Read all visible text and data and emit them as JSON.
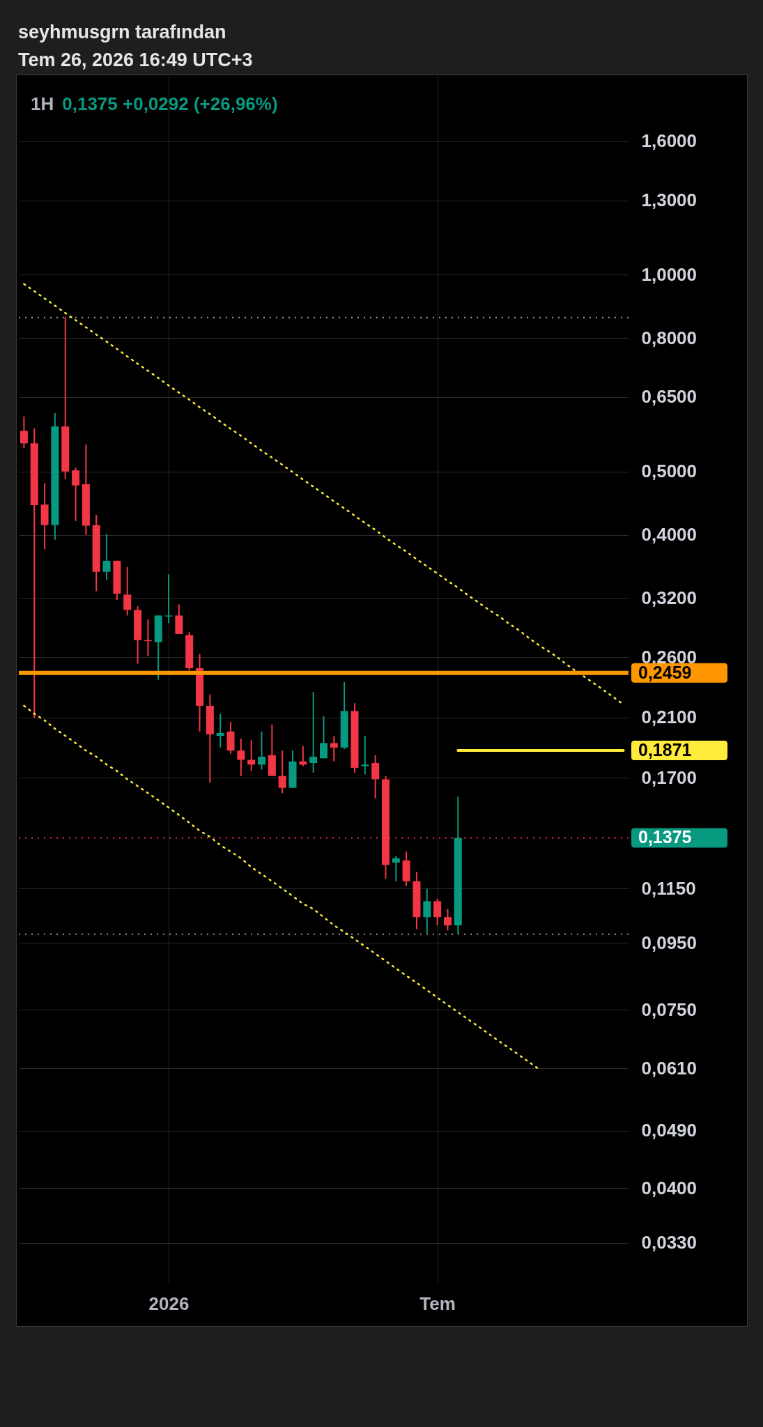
{
  "chart_data": {
    "type": "candlestick",
    "title": "1H",
    "subtitle": "0,1375  +0,0292 (+26,96%)",
    "annotations": [
      "seyhmusgrn tarafından",
      "Tem 26, 2026 16:49 UTC+3"
    ],
    "categories": [
      null,
      null,
      null,
      null,
      null,
      null,
      null,
      null,
      null,
      null,
      null,
      null,
      null,
      null,
      "2026",
      null,
      null,
      null,
      null,
      null,
      null,
      null,
      null,
      null,
      null,
      null,
      null,
      null,
      null,
      null,
      null,
      null,
      null,
      null,
      null,
      null,
      null,
      null,
      null,
      null,
      "Tem",
      null,
      null,
      null,
      null,
      null,
      null,
      null,
      null,
      null,
      null,
      null,
      null,
      null,
      null,
      null,
      null,
      null,
      null
    ],
    "ohlc": [
      [
        0.577,
        0.607,
        0.543,
        0.552
      ],
      [
        0.552,
        0.582,
        0.21,
        0.444
      ],
      [
        0.445,
        0.48,
        0.38,
        0.414
      ],
      [
        0.414,
        0.614,
        0.393,
        0.586
      ],
      [
        0.586,
        0.862,
        0.487,
        0.5
      ],
      [
        0.502,
        0.507,
        0.42,
        0.476
      ],
      [
        0.478,
        0.55,
        0.4,
        0.413
      ],
      [
        0.414,
        0.429,
        0.328,
        0.351
      ],
      [
        0.351,
        0.401,
        0.341,
        0.365
      ],
      [
        0.365,
        0.365,
        0.318,
        0.325
      ],
      [
        0.324,
        0.357,
        0.301,
        0.307
      ],
      [
        0.307,
        0.311,
        0.254,
        0.276
      ],
      [
        0.276,
        0.297,
        0.261,
        0.275
      ],
      [
        0.274,
        0.301,
        0.24,
        0.301
      ],
      [
        0.3,
        0.348,
        0.293,
        0.301
      ],
      [
        0.301,
        0.313,
        0.282,
        0.282
      ],
      [
        0.281,
        0.284,
        0.248,
        0.25
      ],
      [
        0.25,
        0.263,
        0.2,
        0.219
      ],
      [
        0.219,
        0.228,
        0.167,
        0.198
      ],
      [
        0.197,
        0.213,
        0.189,
        0.199
      ],
      [
        0.2,
        0.207,
        0.185,
        0.187
      ],
      [
        0.187,
        0.195,
        0.171,
        0.181
      ],
      [
        0.181,
        0.194,
        0.174,
        0.178
      ],
      [
        0.178,
        0.2,
        0.175,
        0.183
      ],
      [
        0.184,
        0.205,
        0.171,
        0.171
      ],
      [
        0.171,
        0.187,
        0.161,
        0.164
      ],
      [
        0.164,
        0.187,
        0.164,
        0.18
      ],
      [
        0.18,
        0.19,
        0.177,
        0.178
      ],
      [
        0.179,
        0.23,
        0.173,
        0.183
      ],
      [
        0.182,
        0.211,
        0.182,
        0.192
      ],
      [
        0.192,
        0.197,
        0.18,
        0.189
      ],
      [
        0.189,
        0.238,
        0.188,
        0.215
      ],
      [
        0.215,
        0.221,
        0.173,
        0.176
      ],
      [
        0.177,
        0.197,
        0.172,
        0.178
      ],
      [
        0.179,
        0.184,
        0.158,
        0.169
      ],
      [
        0.169,
        0.171,
        0.119,
        0.125
      ],
      [
        0.126,
        0.129,
        0.118,
        0.128
      ],
      [
        0.127,
        0.131,
        0.116,
        0.118
      ],
      [
        0.118,
        0.122,
        0.0996,
        0.104
      ],
      [
        0.104,
        0.115,
        0.0983,
        0.11
      ],
      [
        0.11,
        0.111,
        0.101,
        0.104
      ],
      [
        0.104,
        0.107,
        0.0992,
        0.101
      ],
      [
        0.101,
        0.159,
        0.0981,
        0.1375
      ],
      null,
      null,
      null,
      null,
      null,
      null,
      null,
      null,
      null,
      null,
      null,
      null,
      null,
      null,
      null,
      null
    ],
    "colors": [
      "#f23645",
      "#f23645",
      "#f23645",
      "#089981",
      "#f23645",
      "#f23645",
      "#f23645",
      "#f23645",
      "#089981",
      "#f23645",
      "#f23645",
      "#f23645",
      "#f23645",
      "#089981",
      "#089981",
      "#f23645",
      "#f23645",
      "#f23645",
      "#f23645",
      "#089981",
      "#f23645",
      "#f23645",
      "#f23645",
      "#089981",
      "#f23645",
      "#f23645",
      "#089981",
      "#f23645",
      "#089981",
      "#089981",
      "#f23645",
      "#089981",
      "#f23645",
      "#089981",
      "#f23645",
      "#f23645",
      "#089981",
      "#f23645",
      "#f23645",
      "#089981",
      "#f23645",
      "#f23645",
      "#089981",
      null,
      null,
      null,
      null,
      null,
      null,
      null,
      null,
      null,
      null,
      null,
      null,
      null,
      null,
      null,
      null
    ],
    "series": [
      {
        "type": "line",
        "color": "#ffeb3b",
        "line_style": "dotted",
        "values": [
          0.968,
          0.944,
          0.92,
          0.897,
          0.874,
          0.852,
          0.831,
          0.81,
          0.79,
          0.77,
          0.75,
          0.731,
          0.713,
          0.695,
          0.677,
          0.66,
          0.644,
          0.627,
          0.612,
          0.596,
          0.581,
          0.567,
          0.552,
          0.538,
          0.525,
          0.512,
          0.499,
          0.486,
          0.474,
          0.462,
          0.45,
          0.439,
          0.428,
          0.417,
          0.407,
          0.396,
          0.386,
          0.377,
          0.367,
          0.358,
          0.349,
          0.34,
          0.332,
          0.323,
          0.315,
          0.307,
          0.3,
          0.292,
          0.285,
          0.277,
          0.27,
          0.264,
          0.257,
          0.25,
          0.244,
          0.238,
          0.232,
          0.226,
          0.22
        ]
      },
      {
        "type": "line",
        "color": "#ffeb3b",
        "line_style": "dotted",
        "values": [
          0.219,
          0.213,
          0.208,
          0.202,
          0.197,
          0.192,
          0.187,
          0.183,
          0.178,
          0.174,
          0.169,
          0.165,
          0.161,
          0.157,
          0.153,
          0.149,
          0.145,
          0.141,
          0.138,
          0.134,
          0.131,
          0.128,
          0.124,
          0.121,
          0.118,
          0.115,
          0.112,
          0.109,
          0.107,
          0.104,
          0.101,
          0.0987,
          0.0962,
          0.0938,
          0.0914,
          0.0891,
          0.0868,
          0.0846,
          0.0825,
          0.0804,
          0.0783,
          0.0763,
          0.0744,
          0.0725,
          0.0707,
          0.0689,
          0.0671,
          0.0655,
          0.0638,
          0.0622,
          0.0606,
          null,
          null,
          null,
          null,
          null,
          null,
          null,
          null
        ]
      },
      {
        "type": "line",
        "name": "0,1871",
        "color": "#ffeb3b",
        "line_style": "solid",
        "values": [
          null,
          null,
          null,
          null,
          null,
          null,
          null,
          null,
          null,
          null,
          null,
          null,
          null,
          null,
          null,
          null,
          null,
          null,
          null,
          null,
          null,
          null,
          null,
          null,
          null,
          null,
          null,
          null,
          null,
          null,
          null,
          null,
          null,
          null,
          null,
          null,
          null,
          null,
          null,
          null,
          null,
          null,
          0.1871,
          0.1871,
          0.1871,
          0.1871,
          0.1871,
          0.1871,
          0.1871,
          0.1871,
          0.1871,
          0.1871,
          0.1871,
          0.1871,
          0.1871,
          0.1871,
          0.1871,
          0.1871,
          0.1871
        ]
      }
    ],
    "ref_lines": [
      {
        "axis": "y",
        "value": 0.2459,
        "label": "0,2459",
        "color": "#ff9800",
        "line_style": "solid"
      },
      {
        "axis": "y",
        "value": 0.1375,
        "label": "0,1375",
        "color": "#f23645",
        "line_style": "dotted"
      },
      {
        "axis": "y",
        "value": 0.86,
        "color": "#9598a1",
        "line_style": "dotted"
      },
      {
        "axis": "y",
        "value": 0.0979,
        "color": "#9598a1",
        "line_style": "dotted"
      }
    ],
    "log": true,
    "grid": true,
    "ylim": [
      0.0286,
      2.02
    ],
    "yticks": [
      {
        "value": 1.6,
        "label": "1,6000"
      },
      {
        "value": 1.3,
        "label": "1,3000"
      },
      {
        "value": 1.0,
        "label": "1,0000"
      },
      {
        "value": 0.8,
        "label": "0,8000"
      },
      {
        "value": 0.65,
        "label": "0,6500"
      },
      {
        "value": 0.5,
        "label": "0,5000"
      },
      {
        "value": 0.4,
        "label": "0,4000"
      },
      {
        "value": 0.32,
        "label": "0,3200"
      },
      {
        "value": 0.26,
        "label": "0,2600"
      },
      {
        "value": 0.21,
        "label": "0,2100"
      },
      {
        "value": 0.17,
        "label": "0,1700"
      },
      {
        "value": 0.115,
        "label": "0,1150"
      },
      {
        "value": 0.095,
        "label": "0,0950"
      },
      {
        "value": 0.075,
        "label": "0,0750"
      },
      {
        "value": 0.061,
        "label": "0,0610"
      },
      {
        "value": 0.049,
        "label": "0,0490"
      },
      {
        "value": 0.04,
        "label": "0,0400"
      },
      {
        "value": 0.033,
        "label": "0,0330"
      }
    ]
  }
}
